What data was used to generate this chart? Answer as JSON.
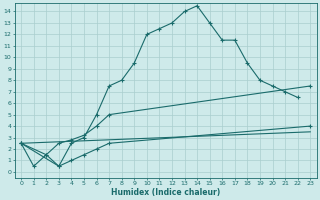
{
  "xlabel": "Humidex (Indice chaleur)",
  "bg_color": "#ceeaea",
  "grid_color": "#aacece",
  "line_color": "#1a6b6b",
  "xlim": [
    -0.5,
    23.5
  ],
  "ylim": [
    -0.5,
    14.7
  ],
  "xticks": [
    0,
    1,
    2,
    3,
    4,
    5,
    6,
    7,
    8,
    9,
    10,
    11,
    12,
    13,
    14,
    15,
    16,
    17,
    18,
    19,
    20,
    21,
    22,
    23
  ],
  "yticks": [
    0,
    1,
    2,
    3,
    4,
    5,
    6,
    7,
    8,
    9,
    10,
    11,
    12,
    13,
    14
  ],
  "line1": {
    "x": [
      0,
      1,
      2,
      3,
      4,
      5,
      6,
      7,
      8,
      9,
      10,
      11,
      12,
      13,
      14,
      15,
      16,
      17,
      18,
      19,
      20,
      21,
      22
    ],
    "y": [
      2.5,
      0.5,
      1.5,
      0.5,
      2.5,
      3.0,
      5.0,
      7.5,
      8.0,
      9.5,
      12.0,
      12.5,
      13.0,
      14.0,
      14.5,
      13.0,
      11.5,
      11.5,
      9.5,
      8.0,
      7.5,
      7.0,
      6.5
    ]
  },
  "line2": {
    "x": [
      0,
      2,
      3,
      4,
      5,
      6,
      7,
      23
    ],
    "y": [
      2.5,
      1.5,
      2.5,
      2.8,
      3.2,
      4.0,
      5.0,
      7.5
    ]
  },
  "line3": {
    "x": [
      0,
      3,
      4,
      5,
      6,
      7,
      23
    ],
    "y": [
      2.5,
      0.5,
      1.0,
      1.5,
      2.0,
      2.5,
      4.0
    ]
  },
  "line4": {
    "x": [
      0,
      23
    ],
    "y": [
      2.5,
      3.5
    ]
  }
}
